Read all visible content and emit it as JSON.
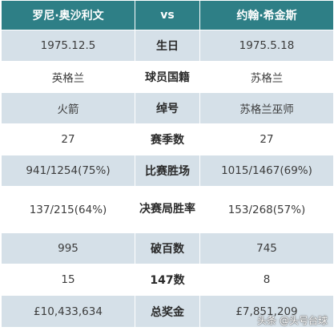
{
  "header": {
    "left": "罗尼·奥沙利文",
    "vs": "vs",
    "right": "约翰·希金斯"
  },
  "rows": [
    {
      "left": "1975.12.5",
      "label": "生日",
      "right": "1975.5.18"
    },
    {
      "left": "英格兰",
      "label": "球员国籍",
      "right": "苏格兰"
    },
    {
      "left": "火箭",
      "label": "绰号",
      "right": "苏格兰巫师"
    },
    {
      "left": "27",
      "label": "赛季数",
      "right": "27"
    },
    {
      "left": "941/1254(75%)",
      "label": "比赛胜场",
      "right": "1015/1467(69%)"
    },
    {
      "left": "137/215(64%)",
      "label": "决赛局胜率",
      "right": "153/268(57%)"
    },
    {
      "left": "995",
      "label": "破百数",
      "right": "745"
    },
    {
      "left": "15",
      "label": "147数",
      "right": "8"
    },
    {
      "left": "£10,433,634",
      "label": "总奖金",
      "right": "£7,851,209"
    }
  ],
  "watermark": "头条 @头号台球",
  "colors": {
    "header_bg": "#2e7f86",
    "shade_row": "#d5e0e8",
    "plain_row": "#ffffff"
  }
}
